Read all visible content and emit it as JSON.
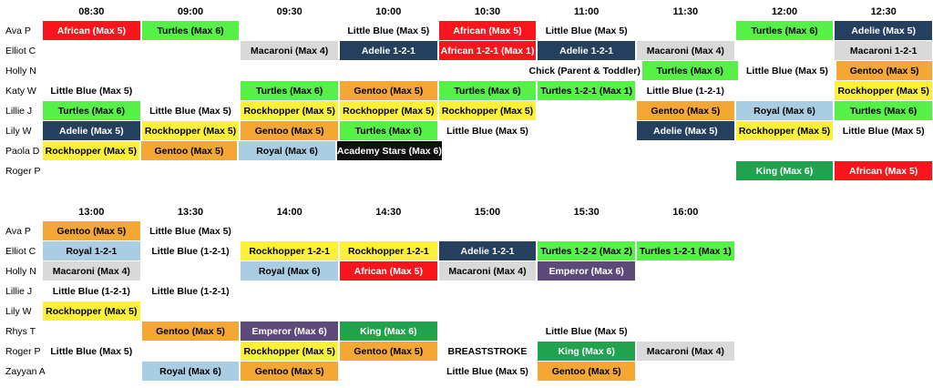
{
  "palette": {
    "african": {
      "bg": "#F9151B",
      "fg": "#FFFFFF"
    },
    "turtles": {
      "bg": "#55F147",
      "fg": "#000000"
    },
    "adelie": {
      "bg": "#24405E",
      "fg": "#FFFFFF"
    },
    "macaroni": {
      "bg": "#D9D9D9",
      "fg": "#000000"
    },
    "gentoo": {
      "bg": "#F4A733",
      "fg": "#000000"
    },
    "rockhopper": {
      "bg": "#FCF136",
      "fg": "#000000"
    },
    "royal": {
      "bg": "#A9CDE3",
      "fg": "#000000"
    },
    "academy": {
      "bg": "#101012",
      "fg": "#FFFFFF"
    },
    "king": {
      "bg": "#21A24D",
      "fg": "#FFFFFF"
    },
    "emperor": {
      "bg": "#5E497B",
      "fg": "#FFFFFF"
    },
    "nofill": {
      "bg": "transparent",
      "fg": "#000000"
    }
  },
  "sections": [
    {
      "id": "morning",
      "times": [
        "08:30",
        "09:00",
        "09:30",
        "10:00",
        "10:30",
        "11:00",
        "11:30",
        "12:00",
        "12:30"
      ],
      "rows": [
        {
          "name": "Ava P",
          "cells": [
            {
              "col": 0,
              "type": "african",
              "label": "African (Max 5)"
            },
            {
              "col": 1,
              "type": "turtles",
              "label": "Turtles (Max 6)"
            },
            {
              "col": 3,
              "type": "nofill",
              "label": "Little Blue (Max 5)"
            },
            {
              "col": 4,
              "type": "african",
              "label": "African (Max 5)"
            },
            {
              "col": 5,
              "type": "nofill",
              "label": "Little Blue (Max 5)"
            },
            {
              "col": 7,
              "type": "turtles",
              "label": "Turtles (Max 6)"
            },
            {
              "col": 8,
              "type": "adelie",
              "label": "Adelie (Max 5)"
            }
          ]
        },
        {
          "name": "Elliot C",
          "cells": [
            {
              "col": 2,
              "type": "macaroni",
              "label": "Macaroni (Max 4)"
            },
            {
              "col": 3,
              "type": "adelie",
              "label": "Adelie 1-2-1"
            },
            {
              "col": 4,
              "type": "african",
              "label": "African 1-2-1 (Max 1)"
            },
            {
              "col": 5,
              "type": "adelie",
              "label": "Adelie 1-2-1"
            },
            {
              "col": 6,
              "type": "macaroni",
              "label": "Macaroni (Max 4)"
            },
            {
              "col": 8,
              "type": "macaroni",
              "label": "Macaroni 1-2-1"
            }
          ]
        },
        {
          "name": "Holly N",
          "cells": [
            {
              "col": 5,
              "type": "nofill",
              "label": "Chick (Parent & Toddler)"
            },
            {
              "col": 6,
              "type": "turtles",
              "label": "Turtles (Max 6)"
            },
            {
              "col": 7,
              "type": "nofill",
              "label": "Little Blue (Max 5)"
            },
            {
              "col": 8,
              "type": "gentoo",
              "label": "Gentoo (Max 5)"
            }
          ]
        },
        {
          "name": "Katy W",
          "cells": [
            {
              "col": 0,
              "type": "nofill",
              "label": "Little Blue (Max 5)"
            },
            {
              "col": 2,
              "type": "turtles",
              "label": "Turtles (Max 6)"
            },
            {
              "col": 3,
              "type": "gentoo",
              "label": "Gentoo (Max 5)"
            },
            {
              "col": 4,
              "type": "turtles",
              "label": "Turtles (Max 6)"
            },
            {
              "col": 5,
              "type": "turtles",
              "label": "Turtles 1-2-1 (Max 1)"
            },
            {
              "col": 6,
              "type": "nofill",
              "label": "Little Blue (1-2-1)"
            },
            {
              "col": 8,
              "type": "rockhopper",
              "label": "Rockhopper (Max 5)"
            }
          ]
        },
        {
          "name": "Lillie J",
          "cells": [
            {
              "col": 0,
              "type": "turtles",
              "label": "Turtles (Max 6)"
            },
            {
              "col": 1,
              "type": "nofill",
              "label": "Little Blue (Max 5)"
            },
            {
              "col": 2,
              "type": "rockhopper",
              "label": "Rockhopper (Max 5)"
            },
            {
              "col": 3,
              "type": "rockhopper",
              "label": "Rockhopper (Max 5)"
            },
            {
              "col": 4,
              "type": "rockhopper",
              "label": "Rockhopper (Max 5)"
            },
            {
              "col": 6,
              "type": "gentoo",
              "label": "Gentoo (Max 5)"
            },
            {
              "col": 7,
              "type": "royal",
              "label": "Royal (Max 6)"
            },
            {
              "col": 8,
              "type": "turtles",
              "label": "Turtles (Max 6)"
            }
          ]
        },
        {
          "name": "Lily W",
          "cells": [
            {
              "col": 0,
              "type": "adelie",
              "label": "Adelie (Max 5)"
            },
            {
              "col": 1,
              "type": "rockhopper",
              "label": "Rockhopper (Max 5)"
            },
            {
              "col": 2,
              "type": "gentoo",
              "label": "Gentoo (Max 5)"
            },
            {
              "col": 3,
              "type": "turtles",
              "label": "Turtles (Max 6)"
            },
            {
              "col": 4,
              "type": "nofill",
              "label": "Little Blue (Max 5)"
            },
            {
              "col": 6,
              "type": "adelie",
              "label": "Adelie (Max 5)"
            },
            {
              "col": 7,
              "type": "rockhopper",
              "label": "Rockhopper (Max 5)"
            },
            {
              "col": 8,
              "type": "nofill",
              "label": "Little Blue (Max 5)"
            }
          ]
        },
        {
          "name": "Paola D",
          "cells": [
            {
              "col": 0,
              "type": "rockhopper",
              "label": "Rockhopper (Max 5)"
            },
            {
              "col": 1,
              "type": "gentoo",
              "label": "Gentoo (Max 5)"
            },
            {
              "col": 2,
              "type": "royal",
              "label": "Royal (Max 6)"
            },
            {
              "col": 3,
              "type": "academy",
              "label": "Academy Stars (Max 6)"
            }
          ]
        },
        {
          "name": "Roger P",
          "cells": [
            {
              "col": 7,
              "type": "king",
              "label": "King (Max 6)"
            },
            {
              "col": 8,
              "type": "african",
              "label": "African (Max 5)"
            }
          ]
        }
      ]
    },
    {
      "id": "afternoon",
      "times": [
        "13:00",
        "13:30",
        "14:00",
        "14:30",
        "15:00",
        "15:30",
        "16:00"
      ],
      "rows": [
        {
          "name": "Ava P",
          "cells": [
            {
              "col": 0,
              "type": "gentoo",
              "label": "Gentoo (Max 5)"
            },
            {
              "col": 1,
              "type": "nofill",
              "label": "Little Blue (Max 5)"
            }
          ]
        },
        {
          "name": "Elliot C",
          "cells": [
            {
              "col": 0,
              "type": "royal",
              "label": "Royal 1-2-1"
            },
            {
              "col": 1,
              "type": "nofill",
              "label": "Little Blue (1-2-1)"
            },
            {
              "col": 2,
              "type": "rockhopper",
              "label": "Rockhopper 1-2-1"
            },
            {
              "col": 3,
              "type": "rockhopper",
              "label": "Rockhopper 1-2-1"
            },
            {
              "col": 4,
              "type": "adelie",
              "label": "Adelie 1-2-1"
            },
            {
              "col": 5,
              "type": "turtles",
              "label": "Turtles 1-2-2 (Max 2)"
            },
            {
              "col": 6,
              "type": "turtles",
              "label": "Turtles 1-2-1 (Max 1)"
            }
          ]
        },
        {
          "name": "Holly N",
          "cells": [
            {
              "col": 0,
              "type": "macaroni",
              "label": "Macaroni (Max 4)"
            },
            {
              "col": 2,
              "type": "royal",
              "label": "Royal (Max 6)"
            },
            {
              "col": 3,
              "type": "african",
              "label": "African (Max 5)"
            },
            {
              "col": 4,
              "type": "macaroni",
              "label": "Macaroni (Max 4)"
            },
            {
              "col": 5,
              "type": "emperor",
              "label": "Emperor (Max 6)"
            }
          ]
        },
        {
          "name": "Lillie J",
          "cells": [
            {
              "col": 0,
              "type": "nofill",
              "label": "Little Blue (1-2-1)"
            },
            {
              "col": 1,
              "type": "nofill",
              "label": "Little Blue (1-2-1)"
            }
          ]
        },
        {
          "name": "Lily W",
          "cells": [
            {
              "col": 0,
              "type": "rockhopper",
              "label": "Rockhopper (Max 5)"
            }
          ]
        },
        {
          "name": "Rhys T",
          "cells": [
            {
              "col": 1,
              "type": "gentoo",
              "label": "Gentoo (Max 5)"
            },
            {
              "col": 2,
              "type": "emperor",
              "label": "Emperor (Max 6)"
            },
            {
              "col": 3,
              "type": "king",
              "label": "King (Max 6)"
            },
            {
              "col": 5,
              "type": "nofill",
              "label": "Little Blue (Max 5)"
            }
          ]
        },
        {
          "name": "Roger P",
          "cells": [
            {
              "col": 0,
              "type": "nofill",
              "label": "Little Blue (Max 5)"
            },
            {
              "col": 2,
              "type": "rockhopper",
              "label": "Rockhopper (Max 5)"
            },
            {
              "col": 3,
              "type": "gentoo",
              "label": "Gentoo (Max 5)"
            },
            {
              "col": 4,
              "type": "nofill",
              "label": "BREASTSTROKE"
            },
            {
              "col": 5,
              "type": "king",
              "label": "King (Max 6)"
            },
            {
              "col": 6,
              "type": "macaroni",
              "label": "Macaroni (Max 4)"
            }
          ]
        },
        {
          "name": "Zayyan A",
          "cells": [
            {
              "col": 1,
              "type": "royal",
              "label": "Royal (Max 6)"
            },
            {
              "col": 2,
              "type": "gentoo",
              "label": "Gentoo (Max 5)"
            },
            {
              "col": 4,
              "type": "nofill",
              "label": "Little Blue (Max 5)"
            },
            {
              "col": 5,
              "type": "gentoo",
              "label": "Gentoo (Max 5)"
            }
          ]
        }
      ]
    }
  ]
}
